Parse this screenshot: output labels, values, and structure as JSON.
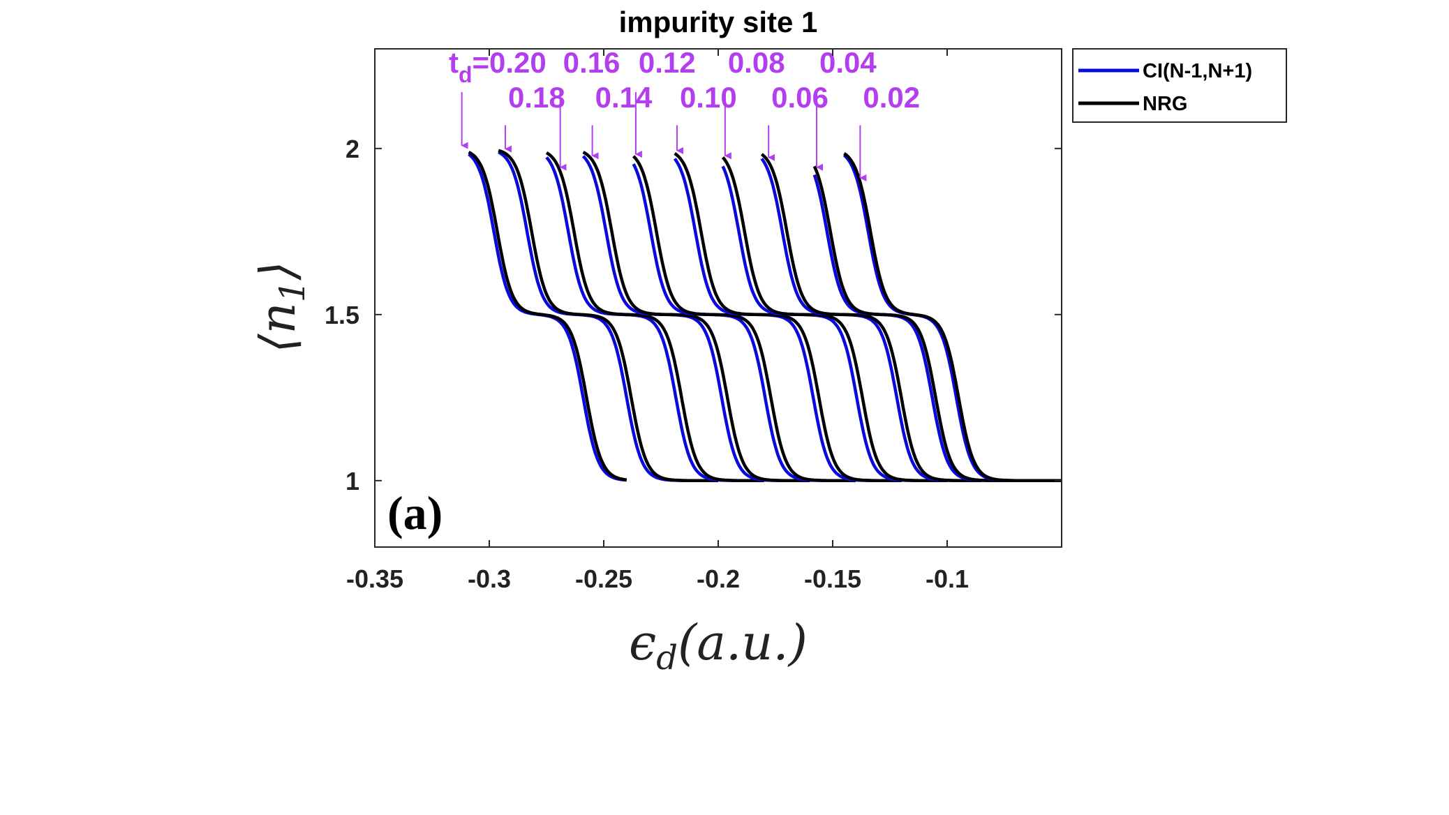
{
  "chart_data": {
    "type": "line",
    "title": "impurity site 1",
    "xlabel": "ϵd(a.u.)",
    "xlabel_main": "ϵ",
    "xlabel_sub": "d",
    "xlabel_tail": "(a.u.)",
    "ylabel": "⟨n1⟩",
    "ylabel_main": "n",
    "ylabel_sub": "1",
    "xlim": [
      -0.35,
      -0.05
    ],
    "ylim": [
      0.8,
      2.3
    ],
    "xticks": [
      -0.35,
      -0.3,
      -0.25,
      -0.2,
      -0.15,
      -0.1
    ],
    "xtick_labels": [
      "-0.35",
      "-0.3",
      "-0.25",
      "-0.2",
      "-0.15",
      "-0.1"
    ],
    "yticks": [
      1,
      1.5,
      2
    ],
    "ytick_labels": [
      "1",
      "1.5",
      "2"
    ],
    "grid": false,
    "legend_placement": "outside-top-right",
    "panel_label": "(a)",
    "colors": {
      "ci": "#0a0adc",
      "nrg": "#000000",
      "annotation": "#b23ef0"
    },
    "series": [
      {
        "name": "CI(N-1,N+1)",
        "color": "#0a0adc"
      },
      {
        "name": "NRG",
        "color": "#000000"
      }
    ],
    "curves": [
      {
        "td": 0.2,
        "label": "t",
        "label_sub": "d",
        "label_tail": "=0.20",
        "arrow_x": -0.312,
        "x_start": -0.309,
        "x_end": -0.24,
        "step1": -0.2965,
        "step2": -0.2575,
        "ci_shift": -0.0015
      },
      {
        "td": 0.18,
        "label": "0.18",
        "arrow_x": -0.293,
        "x_start": -0.296,
        "x_end": -0.2,
        "step1": -0.2815,
        "step2": -0.238,
        "ci_shift": -0.002
      },
      {
        "td": 0.16,
        "label": "0.16",
        "arrow_x": -0.269,
        "x_start": -0.275,
        "x_end": -0.18,
        "step1": -0.263,
        "step2": -0.216,
        "ci_shift": -0.0025
      },
      {
        "td": 0.14,
        "label": "0.14",
        "arrow_x": -0.255,
        "x_start": -0.259,
        "x_end": -0.16,
        "step1": -0.2465,
        "step2": -0.196,
        "ci_shift": -0.0025
      },
      {
        "td": 0.12,
        "label": "0.12",
        "arrow_x": -0.236,
        "x_start": -0.237,
        "x_end": -0.14,
        "step1": -0.227,
        "step2": -0.177,
        "ci_shift": -0.0025
      },
      {
        "td": 0.1,
        "label": "0.10",
        "arrow_x": -0.218,
        "x_start": -0.219,
        "x_end": -0.12,
        "step1": -0.2075,
        "step2": -0.156,
        "ci_shift": -0.0025
      },
      {
        "td": 0.08,
        "label": "0.08",
        "arrow_x": -0.197,
        "x_start": -0.198,
        "x_end": -0.1,
        "step1": -0.1885,
        "step2": -0.137,
        "ci_shift": -0.0025
      },
      {
        "td": 0.06,
        "label": "0.06",
        "arrow_x": -0.178,
        "x_start": -0.181,
        "x_end": -0.085,
        "step1": -0.17,
        "step2": -0.12,
        "ci_shift": -0.002
      },
      {
        "td": 0.04,
        "label": "0.04",
        "arrow_x": -0.157,
        "x_start": -0.158,
        "x_end": -0.07,
        "step1": -0.151,
        "step2": -0.105,
        "ci_shift": -0.0015
      },
      {
        "td": 0.02,
        "label": "0.02",
        "arrow_x": -0.138,
        "x_start": -0.145,
        "x_end": -0.05,
        "step1": -0.1335,
        "step2": -0.095,
        "ci_shift": -0.001
      }
    ]
  }
}
